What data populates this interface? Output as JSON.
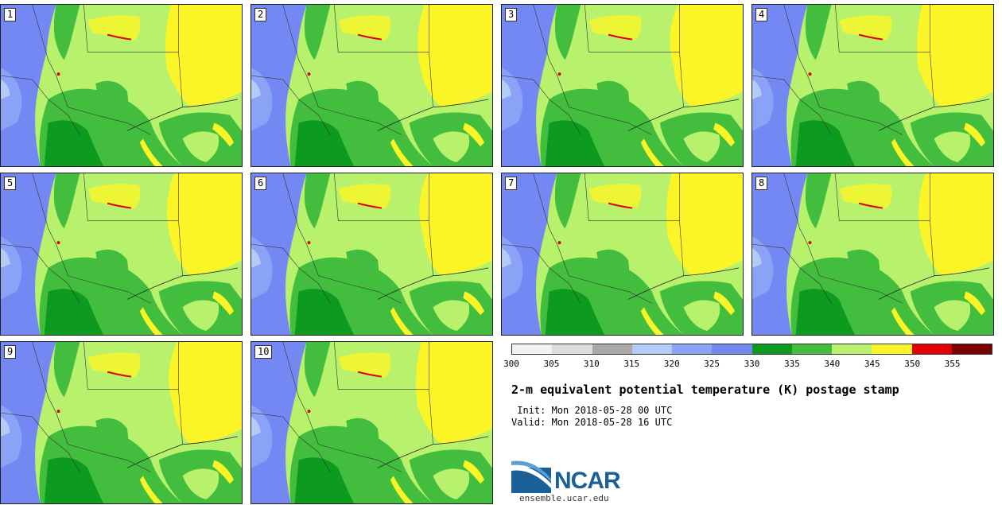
{
  "panels": [
    {
      "label": "1"
    },
    {
      "label": "2"
    },
    {
      "label": "3"
    },
    {
      "label": "4"
    },
    {
      "label": "5"
    },
    {
      "label": "6"
    },
    {
      "label": "7"
    },
    {
      "label": "8"
    },
    {
      "label": "9"
    },
    {
      "label": "10"
    }
  ],
  "colorbar": {
    "ticks": [
      "300",
      "305",
      "310",
      "315",
      "320",
      "325",
      "330",
      "335",
      "340",
      "345",
      "350",
      "355"
    ],
    "colors": [
      "#f2f2f2",
      "#dcdcdc",
      "#a9a9a9",
      "#b5cbf7",
      "#8aa3f7",
      "#7388f2",
      "#0c9b1f",
      "#43bd3d",
      "#b8f26d",
      "#fbf527",
      "#e30000",
      "#7d0000"
    ]
  },
  "title": "2-m equivalent potential temperature (K) postage stamp",
  "init": " Init: Mon 2018-05-28 00 UTC",
  "valid": "Valid: Mon 2018-05-28 16 UTC",
  "logo": {
    "text": "NCAR",
    "url": "ensemble.ucar.edu"
  }
}
